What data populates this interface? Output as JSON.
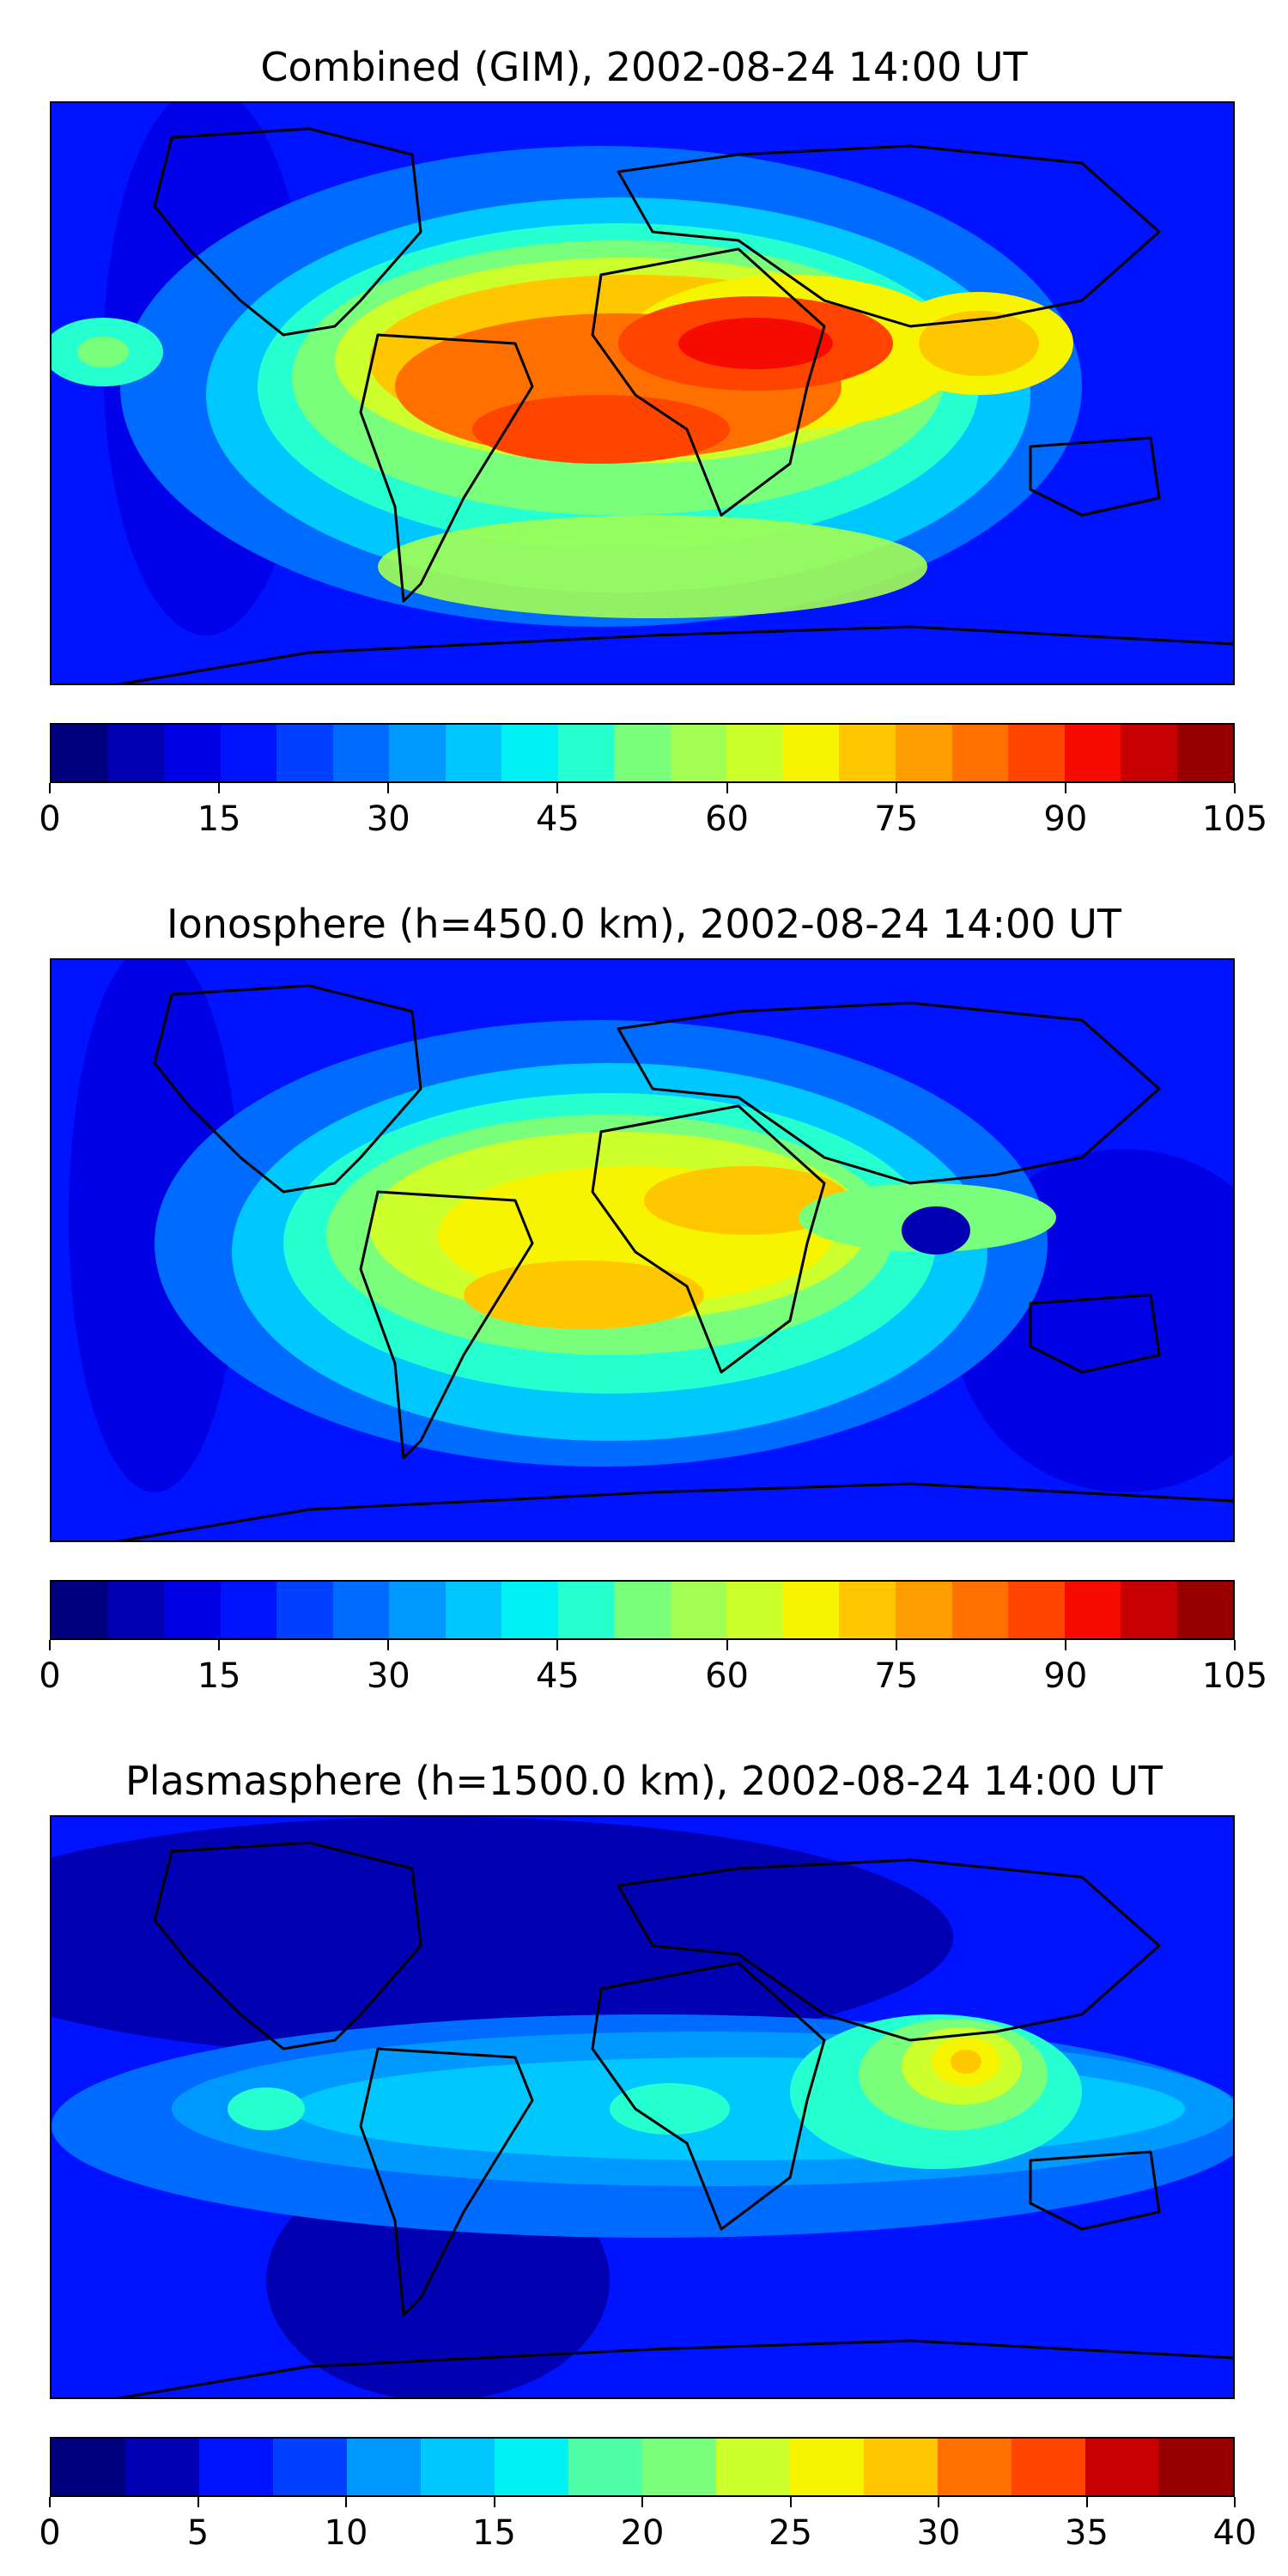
{
  "panels": [
    {
      "title": "Combined (GIM), 2002-08-24 14:00 UT",
      "colorbar_ticks": [
        "0",
        "15",
        "30",
        "45",
        "60",
        "75",
        "90",
        "105"
      ],
      "colorbar_range": [
        0,
        105
      ]
    },
    {
      "title": "Ionosphere  (h=450.0 km), 2002-08-24 14:00 UT",
      "colorbar_ticks": [
        "0",
        "15",
        "30",
        "45",
        "60",
        "75",
        "90",
        "105"
      ],
      "colorbar_range": [
        0,
        105
      ]
    },
    {
      "title": "Plasmasphere (h=1500.0 km), 2002-08-24 14:00 UT",
      "colorbar_ticks": [
        "0",
        "5",
        "10",
        "15",
        "20",
        "25",
        "30",
        "35",
        "40"
      ],
      "colorbar_range": [
        0,
        40
      ]
    }
  ],
  "colormap": "jet",
  "colormap_colors": [
    "#00007f",
    "#0000b2",
    "#0000e5",
    "#0013ff",
    "#0041ff",
    "#006bff",
    "#0099ff",
    "#00c7ff",
    "#00f1f4",
    "#26ffd0",
    "#4effa8",
    "#7aff7c",
    "#a3ff53",
    "#ccff2b",
    "#f7f400",
    "#ffc700",
    "#ff9d00",
    "#ff7000",
    "#ff4400",
    "#f50b00",
    "#c60000",
    "#980000"
  ],
  "map_background": "#0013ff",
  "coastline_color": "#000000"
}
